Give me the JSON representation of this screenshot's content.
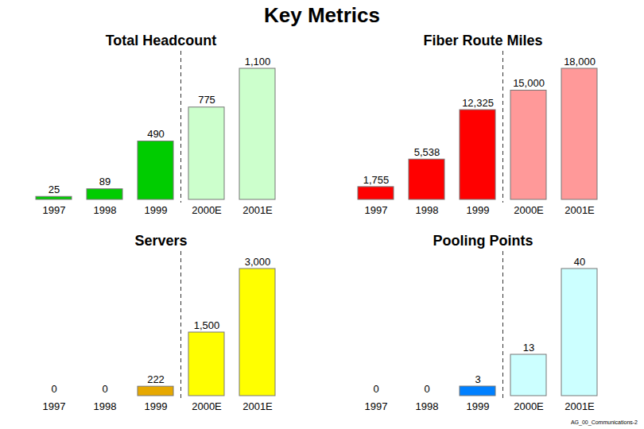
{
  "title": "Key Metrics",
  "footnote": "AG_00_Communications-2",
  "chart_data": [
    {
      "type": "bar",
      "title": "Total Headcount",
      "categories": [
        "1997",
        "1998",
        "1999",
        "2000E",
        "2001E"
      ],
      "values": [
        25,
        89,
        490,
        775,
        1100
      ],
      "value_labels": [
        "25",
        "89",
        "490",
        "775",
        "1,100"
      ],
      "colors": [
        "#00cc00",
        "#00cc00",
        "#00cc00",
        "#ccffcc",
        "#ccffcc"
      ],
      "data_labels": true,
      "tick_labels": "x"
    },
    {
      "type": "bar",
      "title": "Fiber Route Miles",
      "categories": [
        "1997",
        "1998",
        "1999",
        "2000E",
        "2001E"
      ],
      "values": [
        1755,
        5538,
        12325,
        15000,
        18000
      ],
      "value_labels": [
        "1,755",
        "5,538",
        "12,325",
        "15,000",
        "18,000"
      ],
      "colors": [
        "#ff0000",
        "#ff0000",
        "#ff0000",
        "#ff9999",
        "#ff9999"
      ],
      "data_labels": true,
      "tick_labels": "x"
    },
    {
      "type": "bar",
      "title": "Servers",
      "categories": [
        "1997",
        "1998",
        "1999",
        "2000E",
        "2001E"
      ],
      "values": [
        0,
        0,
        222,
        1500,
        3000
      ],
      "value_labels": [
        "0",
        "0",
        "222",
        "1,500",
        "3,000"
      ],
      "colors": [
        "#e6a800",
        "#e6a800",
        "#e6a800",
        "#ffff00",
        "#ffff00"
      ],
      "data_labels": true,
      "tick_labels": "x"
    },
    {
      "type": "bar",
      "title": "Pooling Points",
      "categories": [
        "1997",
        "1998",
        "1999",
        "2000E",
        "2001E"
      ],
      "values": [
        0,
        0,
        3,
        13,
        40
      ],
      "value_labels": [
        "0",
        "0",
        "3",
        "13",
        "40"
      ],
      "colors": [
        "#0080ff",
        "#0080ff",
        "#0080ff",
        "#ccffff",
        "#ccffff"
      ],
      "data_labels": true,
      "tick_labels": "x"
    }
  ]
}
